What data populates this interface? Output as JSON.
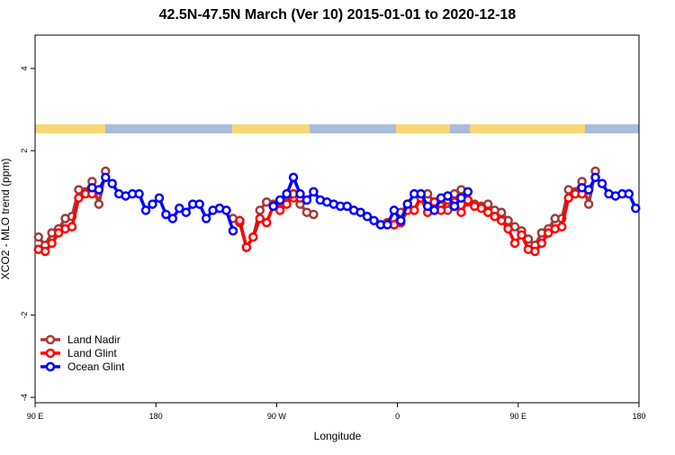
{
  "chart_data": {
    "type": "line",
    "title": "42.5N-47.5N March (Ver 10)   2015-01-01 to 2020-12-18",
    "x_label": "Longitude",
    "y_label": "XCO2 - MLO trend (ppm)",
    "xlim": [
      90,
      540
    ],
    "ylim": [
      -4.13,
      4.81
    ],
    "xticks": [
      {
        "value": 90,
        "label": "90 E"
      },
      {
        "value": 180,
        "label": "180"
      },
      {
        "value": 270,
        "label": "90 W"
      },
      {
        "value": 360,
        "label": "0"
      },
      {
        "value": 450,
        "label": "90 E"
      },
      {
        "value": 540,
        "label": "180"
      }
    ],
    "yticks": [
      -4,
      -2,
      2,
      4
    ],
    "legend": "bottom-left",
    "series": [
      {
        "name": "Land Nadir",
        "color": "#a33a3a",
        "x": [
          92.5,
          97.5,
          102.5,
          107.5,
          112.5,
          117.5,
          122.5,
          127.5,
          132.5,
          137.5,
          142.5,
          147.5,
          237.5,
          242.5,
          247.5,
          252.5,
          257.5,
          262.5,
          267.5,
          272.5,
          277.5,
          282.5,
          287.5,
          292.5,
          297.5,
          302.5,
          357.5,
          362.5,
          367.5,
          372.5,
          377.5,
          382.5,
          387.5,
          392.5,
          397.5,
          402.5,
          407.5,
          412.5,
          417.5,
          422.5,
          427.5,
          432.5,
          437.5,
          442.5,
          447.5,
          452.5,
          457.5,
          462.5,
          467.5,
          472.5,
          477.5,
          482.5,
          487.5,
          492.5,
          497.5,
          502.5,
          507.5
        ],
        "values": [
          -0.1,
          -0.3,
          0.0,
          0.1,
          0.35,
          0.4,
          1.05,
          1.0,
          1.25,
          0.7,
          1.5,
          null,
          0.35,
          0.25,
          -0.35,
          -0.1,
          0.55,
          0.75,
          0.7,
          0.6,
          0.9,
          0.85,
          0.7,
          0.5,
          0.45,
          null,
          0.2,
          0.5,
          0.7,
          0.55,
          0.9,
          0.95,
          0.75,
          0.65,
          0.55,
          0.95,
          1.05,
          0.75,
          0.7,
          0.65,
          0.7,
          0.55,
          0.5,
          0.3,
          0.15,
          0.05,
          -0.15,
          -0.3,
          0.0,
          0.1,
          0.35,
          0.35,
          1.05,
          1.0,
          1.25,
          0.7,
          1.5
        ]
      },
      {
        "name": "Land Glint",
        "color": "#ff0000",
        "x": [
          92.5,
          97.5,
          102.5,
          107.5,
          112.5,
          117.5,
          122.5,
          127.5,
          132.5,
          137.5,
          242.5,
          247.5,
          252.5,
          257.5,
          262.5,
          267.5,
          272.5,
          277.5,
          282.5,
          287.5,
          292.5,
          352.5,
          357.5,
          362.5,
          367.5,
          372.5,
          377.5,
          382.5,
          387.5,
          392.5,
          397.5,
          402.5,
          407.5,
          412.5,
          417.5,
          422.5,
          427.5,
          432.5,
          437.5,
          442.5,
          447.5,
          452.5,
          457.5,
          462.5,
          467.5,
          472.5,
          477.5,
          482.5,
          487.5,
          492.5,
          497.5
        ],
        "values": [
          -0.4,
          -0.45,
          -0.25,
          0.0,
          0.1,
          0.15,
          0.85,
          0.95,
          0.95,
          null,
          0.3,
          -0.35,
          -0.1,
          0.35,
          0.25,
          0.65,
          0.55,
          0.7,
          0.95,
          0.85,
          null,
          0.25,
          0.2,
          0.25,
          0.55,
          0.55,
          0.85,
          0.5,
          0.75,
          0.55,
          0.8,
          0.75,
          0.5,
          0.8,
          0.65,
          0.6,
          0.5,
          0.4,
          0.3,
          0.1,
          -0.25,
          -0.05,
          -0.4,
          -0.45,
          -0.25,
          0.0,
          0.1,
          0.15,
          0.85,
          0.95,
          0.95
        ]
      },
      {
        "name": "Ocean Glint",
        "color": "#0000ff",
        "x": [
          132.5,
          137.5,
          142.5,
          147.5,
          152.5,
          157.5,
          162.5,
          167.5,
          172.5,
          177.5,
          182.5,
          187.5,
          192.5,
          197.5,
          202.5,
          207.5,
          212.5,
          217.5,
          222.5,
          227.5,
          232.5,
          237.5,
          247.5,
          267.5,
          272.5,
          277.5,
          282.5,
          287.5,
          292.5,
          297.5,
          302.5,
          307.5,
          312.5,
          317.5,
          322.5,
          327.5,
          332.5,
          337.5,
          342.5,
          347.5,
          352.5,
          357.5,
          362.5,
          367.5,
          372.5,
          377.5,
          382.5,
          387.5,
          392.5,
          397.5,
          402.5,
          407.5,
          412.5,
          417.5,
          497.5,
          502.5,
          507.5,
          512.5,
          517.5,
          522.5,
          527.5,
          532.5,
          537.5
        ],
        "values": [
          1.1,
          1.05,
          1.35,
          1.2,
          0.95,
          0.9,
          0.95,
          0.95,
          0.55,
          0.7,
          0.85,
          0.45,
          0.35,
          0.6,
          0.5,
          0.7,
          0.7,
          0.35,
          0.55,
          0.6,
          0.55,
          0.05,
          null,
          0.65,
          0.8,
          0.95,
          1.35,
          0.95,
          0.8,
          1.0,
          0.8,
          0.75,
          0.7,
          0.65,
          0.65,
          0.55,
          0.5,
          0.4,
          0.3,
          0.2,
          0.2,
          0.55,
          0.3,
          0.7,
          0.95,
          0.95,
          0.65,
          0.55,
          0.85,
          0.9,
          0.65,
          0.85,
          1.0,
          null,
          1.1,
          1.05,
          1.35,
          1.2,
          0.95,
          0.9,
          0.95,
          0.95,
          0.6
        ]
      }
    ]
  }
}
